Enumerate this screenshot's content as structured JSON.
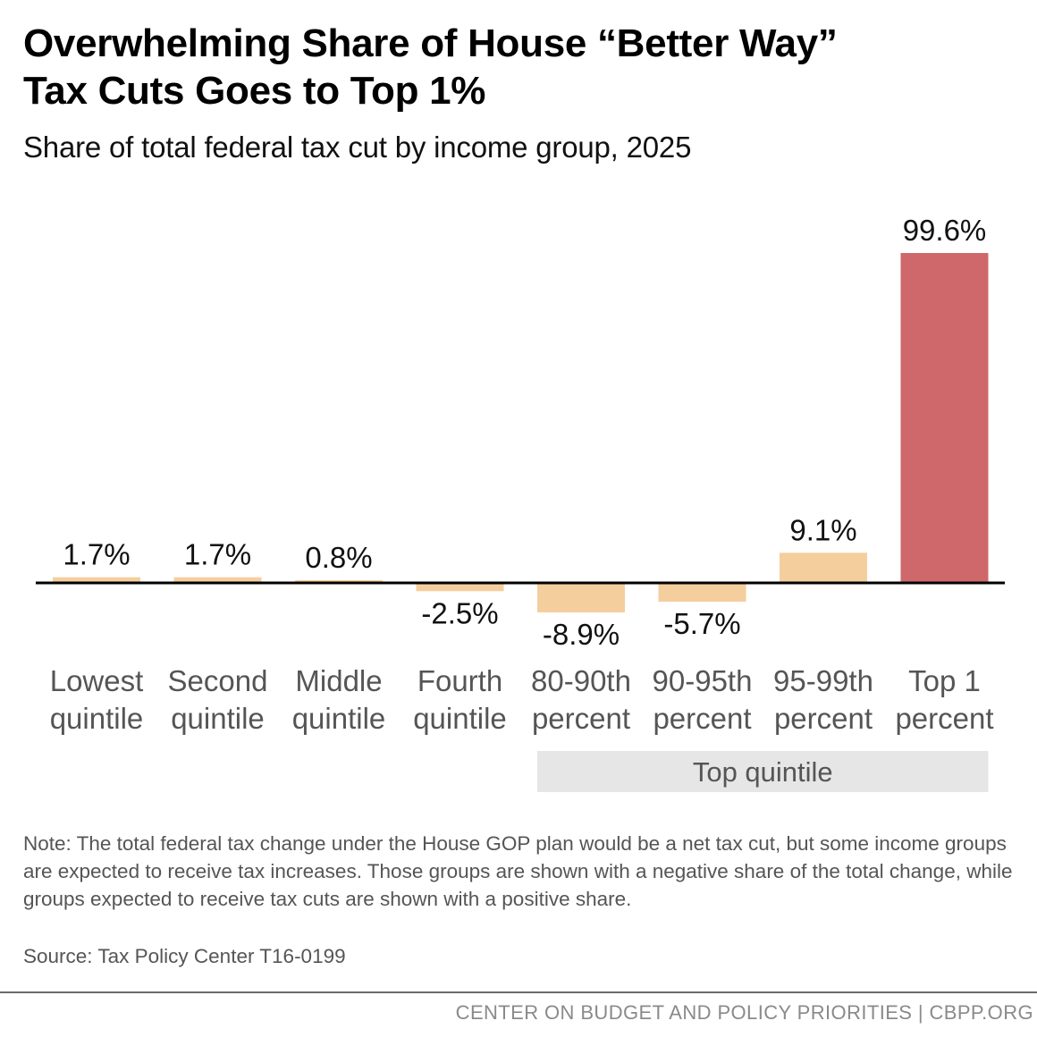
{
  "header": {
    "title_line1": "Overwhelming Share of House “Better Way”",
    "title_line2": "Tax Cuts Goes to Top 1%",
    "subtitle": "Share of total federal tax cut by income group, 2025"
  },
  "chart_data": {
    "type": "bar",
    "title": "Overwhelming Share of House “Better Way” Tax Cuts Goes to Top 1%",
    "subtitle": "Share of total federal tax cut by income group, 2025",
    "unit": "%",
    "categories": [
      [
        "Lowest",
        "quintile"
      ],
      [
        "Second",
        "quintile"
      ],
      [
        "Middle",
        "quintile"
      ],
      [
        "Fourth",
        "quintile"
      ],
      [
        "80-90th",
        "percent"
      ],
      [
        "90-95th",
        "percent"
      ],
      [
        "95-99th",
        "percent"
      ],
      [
        "Top 1",
        "percent"
      ]
    ],
    "values": [
      1.7,
      1.7,
      0.8,
      -2.5,
      -8.9,
      -5.7,
      9.1,
      99.6
    ],
    "value_labels": [
      "1.7%",
      "1.7%",
      "0.8%",
      "-2.5%",
      "-8.9%",
      "-5.7%",
      "9.1%",
      "99.6%"
    ],
    "highlight_index": 7,
    "colors": {
      "default": "#F5CE9E",
      "highlight": "#CF686A",
      "axis": "#000000",
      "group_band": "#E6E6E6"
    },
    "group": {
      "label": "Top quintile",
      "from_index": 4,
      "to_index": 7
    },
    "xlabel": "",
    "ylabel": "",
    "ylim": [
      -10,
      100
    ],
    "grid": false,
    "legend": "none"
  },
  "notes": {
    "note": "Note:  The total federal tax change under the House GOP plan would be a net tax cut, but some income groups are expected to receive tax increases.  Those groups are shown with a negative share of the total change, while groups expected to receive tax cuts are shown with a positive share.",
    "source": "Source: Tax Policy Center T16-0199"
  },
  "footer": {
    "org": "CENTER ON BUDGET AND POLICY PRIORITIES | CBPP.ORG"
  }
}
